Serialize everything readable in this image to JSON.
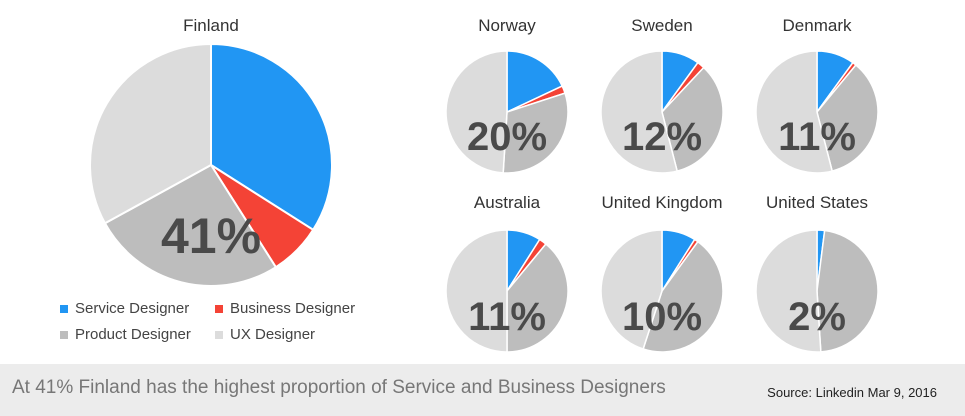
{
  "colors": {
    "Service Designer": "#2196f3",
    "Business Designer": "#f44336",
    "Product Designer": "#bdbdbd",
    "UX Designer": "#dcdcdc"
  },
  "legend": [
    "Service Designer",
    "Business Designer",
    "Product Designer",
    "UX Designer"
  ],
  "chart_data": [
    {
      "type": "pie",
      "title": "Finland",
      "label": "41%",
      "categories": [
        "Service Designer",
        "Business Designer",
        "Product Designer",
        "UX Designer"
      ],
      "values": [
        34,
        7,
        26,
        33
      ]
    },
    {
      "type": "pie",
      "title": "Norway",
      "label": "20%",
      "categories": [
        "Service Designer",
        "Business Designer",
        "Product Designer",
        "UX Designer"
      ],
      "values": [
        18,
        2,
        31,
        49
      ]
    },
    {
      "type": "pie",
      "title": "Sweden",
      "label": "12%",
      "categories": [
        "Service Designer",
        "Business Designer",
        "Product Designer",
        "UX Designer"
      ],
      "values": [
        10,
        2,
        34,
        54
      ]
    },
    {
      "type": "pie",
      "title": "Denmark",
      "label": "11%",
      "categories": [
        "Service Designer",
        "Business Designer",
        "Product Designer",
        "UX Designer"
      ],
      "values": [
        10,
        1,
        35,
        54
      ]
    },
    {
      "type": "pie",
      "title": "Australia",
      "label": "11%",
      "categories": [
        "Service Designer",
        "Business Designer",
        "Product Designer",
        "UX Designer"
      ],
      "values": [
        9,
        2,
        39,
        50
      ]
    },
    {
      "type": "pie",
      "title": "United Kingdom",
      "label": "10%",
      "categories": [
        "Service Designer",
        "Business Designer",
        "Product Designer",
        "UX Designer"
      ],
      "values": [
        9,
        1,
        45,
        45
      ]
    },
    {
      "type": "pie",
      "title": "United States",
      "label": "2%",
      "categories": [
        "Service Designer",
        "Business Designer",
        "Product Designer",
        "UX Designer"
      ],
      "values": [
        2,
        0,
        47,
        51
      ]
    }
  ],
  "footer": {
    "caption": "At 41% Finland has the highest proportion of Service and Business Designers",
    "source": "Source: Linkedin Mar 9, 2016"
  }
}
